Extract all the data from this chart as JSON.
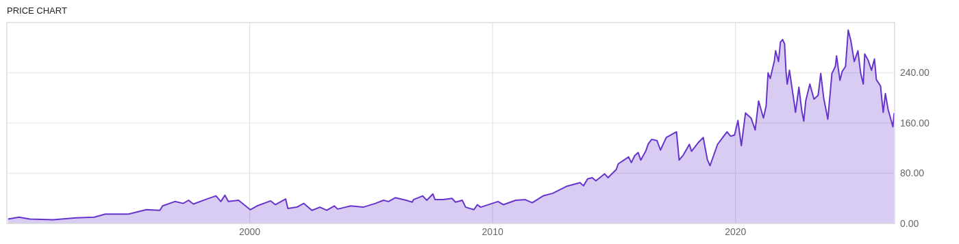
{
  "chart_data": {
    "type": "area",
    "title": "PRICE CHART",
    "x": [
      1990.05,
      1990.5,
      1990.95,
      1991.91,
      1992.84,
      1993.6,
      1994.05,
      1995.01,
      1995.74,
      1996.3,
      1996.41,
      1996.92,
      1997.26,
      1997.48,
      1997.68,
      1998.24,
      1998.61,
      1998.81,
      1998.98,
      1999.12,
      1999.54,
      2000.02,
      2000.3,
      2000.86,
      2001.06,
      2001.48,
      2001.57,
      2001.94,
      2002.22,
      2002.56,
      2002.89,
      2003.17,
      2003.48,
      2003.62,
      2004.16,
      2004.67,
      2005.17,
      2005.51,
      2005.71,
      2005.99,
      2006.44,
      2006.69,
      2006.74,
      2007.12,
      2007.29,
      2007.54,
      2007.63,
      2007.96,
      2008.33,
      2008.47,
      2008.75,
      2008.89,
      2009.23,
      2009.37,
      2009.51,
      2010.22,
      2010.44,
      2010.95,
      2011.34,
      2011.63,
      2012.08,
      2012.47,
      2013.03,
      2013.6,
      2013.74,
      2013.91,
      2014.1,
      2014.25,
      2014.61,
      2014.75,
      2015.09,
      2015.17,
      2015.6,
      2015.71,
      2015.85,
      2015.99,
      2016.1,
      2016.3,
      2016.41,
      2016.55,
      2016.77,
      2016.91,
      2017.15,
      2017.57,
      2017.68,
      2017.85,
      2018.1,
      2018.19,
      2018.47,
      2018.67,
      2018.84,
      2018.95,
      2019.26,
      2019.51,
      2019.65,
      2019.8,
      2019.96,
      2020.1,
      2020.24,
      2020.41,
      2020.64,
      2020.81,
      2020.95,
      2021.15,
      2021.26,
      2021.34,
      2021.43,
      2021.6,
      2021.65,
      2021.77,
      2021.85,
      2021.94,
      2022.02,
      2022.08,
      2022.13,
      2022.22,
      2022.42,
      2022.47,
      2022.61,
      2022.73,
      2022.81,
      2022.89,
      2023.06,
      2023.23,
      2023.4,
      2023.51,
      2023.63,
      2023.8,
      2023.97,
      2024.11,
      2024.16,
      2024.3,
      2024.39,
      2024.53,
      2024.64,
      2024.75,
      2024.84,
      2024.89,
      2025.04,
      2025.15,
      2025.26,
      2025.32,
      2025.46,
      2025.6,
      2025.72,
      2025.8,
      2025.97,
      2026.08,
      2026.17,
      2026.28,
      2026.48,
      2026.53
    ],
    "series": [
      {
        "color": "#6633cc",
        "values": [
          7,
          10,
          7,
          6,
          9,
          10,
          15,
          15,
          22,
          21,
          28,
          35,
          32,
          37,
          31,
          39,
          44,
          35,
          45,
          35,
          37,
          22,
          28,
          36,
          30,
          39,
          24,
          26,
          32,
          21,
          26,
          21,
          28,
          23,
          28,
          26,
          32,
          37,
          35,
          41,
          37,
          34,
          38,
          44,
          37,
          47,
          38,
          38,
          40,
          34,
          37,
          26,
          22,
          30,
          26,
          35,
          30,
          37,
          38,
          33,
          44,
          48,
          59,
          65,
          60,
          71,
          73,
          68,
          79,
          73,
          86,
          95,
          106,
          97,
          108,
          113,
          101,
          115,
          127,
          134,
          132,
          117,
          137,
          146,
          101,
          109,
          126,
          115,
          129,
          137,
          102,
          92,
          126,
          139,
          146,
          139,
          141,
          164,
          124,
          176,
          168,
          149,
          195,
          168,
          187,
          240,
          231,
          259,
          275,
          258,
          289,
          293,
          286,
          242,
          222,
          244,
          191,
          177,
          217,
          179,
          163,
          195,
          222,
          198,
          204,
          239,
          200,
          166,
          239,
          250,
          267,
          228,
          242,
          250,
          308,
          291,
          269,
          258,
          275,
          240,
          222,
          270,
          260,
          244,
          262,
          229,
          219,
          177,
          207,
          182,
          154,
          176
        ]
      }
    ],
    "xlim": [
      1990,
      2026.55
    ],
    "xticks": [
      2000,
      2010,
      2020
    ],
    "ylim": [
      0,
      320
    ],
    "yticks": [
      {
        "value": 0,
        "label": "0.00"
      },
      {
        "value": 80,
        "label": "80.00"
      },
      {
        "value": 160,
        "label": "160.00"
      },
      {
        "value": 240,
        "label": "240.00"
      }
    ],
    "grid": true
  }
}
